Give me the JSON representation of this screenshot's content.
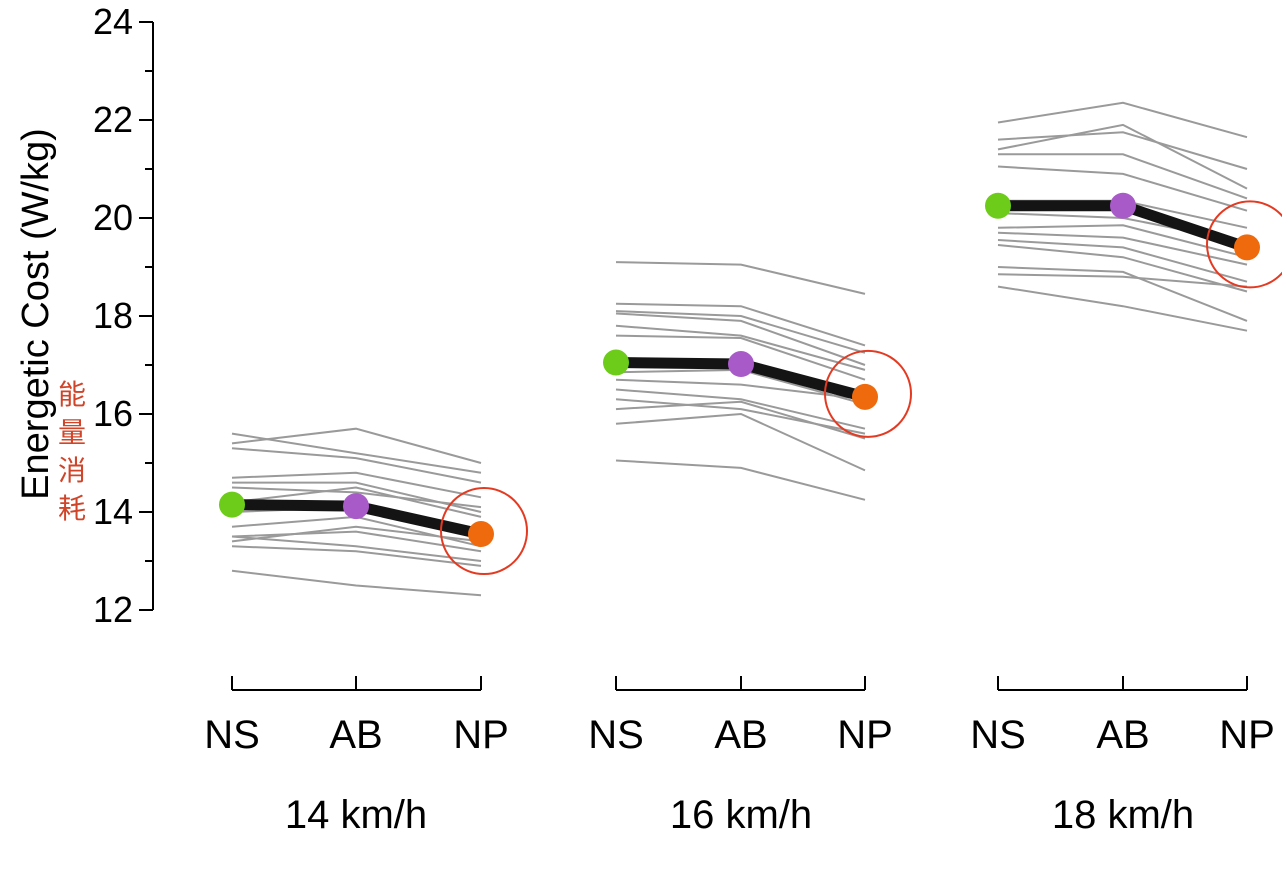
{
  "chart_data": {
    "type": "line",
    "ylabel": "Energetic Cost (W/kg)",
    "ylim": [
      12,
      24
    ],
    "yticks": [
      "12",
      "14",
      "16",
      "18",
      "20",
      "22",
      "24"
    ],
    "grid": false,
    "categories": [
      "NS",
      "AB",
      "NP"
    ],
    "groups": [
      {
        "label": "14 km/h",
        "mean": [
          14.15,
          14.12,
          13.55
        ],
        "individuals": [
          [
            15.6,
            15.2,
            14.8
          ],
          [
            15.4,
            15.7,
            15.0
          ],
          [
            15.3,
            15.1,
            14.6
          ],
          [
            14.7,
            14.8,
            14.3
          ],
          [
            14.6,
            14.6,
            14.0
          ],
          [
            14.5,
            14.4,
            14.1
          ],
          [
            14.2,
            14.5,
            13.9
          ],
          [
            14.0,
            14.1,
            13.6
          ],
          [
            13.7,
            13.9,
            13.3
          ],
          [
            13.5,
            13.6,
            13.2
          ],
          [
            13.4,
            13.7,
            13.4
          ],
          [
            13.3,
            13.2,
            12.9
          ],
          [
            13.5,
            13.3,
            13.0
          ],
          [
            12.8,
            12.5,
            12.3
          ]
        ]
      },
      {
        "label": "16 km/h",
        "mean": [
          17.05,
          17.02,
          16.35
        ],
        "individuals": [
          [
            19.1,
            19.05,
            18.45
          ],
          [
            18.25,
            18.2,
            17.4
          ],
          [
            18.1,
            18.0,
            17.25
          ],
          [
            18.05,
            17.9,
            17.0
          ],
          [
            17.8,
            17.6,
            16.9
          ],
          [
            17.6,
            17.55,
            16.7
          ],
          [
            17.0,
            17.0,
            16.4
          ],
          [
            16.85,
            16.9,
            16.2
          ],
          [
            16.7,
            16.6,
            16.3
          ],
          [
            16.5,
            16.3,
            15.7
          ],
          [
            16.3,
            16.1,
            15.6
          ],
          [
            16.1,
            16.25,
            15.5
          ],
          [
            15.8,
            16.0,
            14.85
          ],
          [
            15.05,
            14.9,
            14.25
          ]
        ]
      },
      {
        "label": "18 km/h",
        "mean": [
          20.25,
          20.25,
          19.4
        ],
        "individuals": [
          [
            21.95,
            22.35,
            21.65
          ],
          [
            21.6,
            21.75,
            21.0
          ],
          [
            21.4,
            21.9,
            20.6
          ],
          [
            21.3,
            21.3,
            20.4
          ],
          [
            21.05,
            20.9,
            20.15
          ],
          [
            20.35,
            20.35,
            19.8
          ],
          [
            20.1,
            20.0,
            19.5
          ],
          [
            19.8,
            19.85,
            19.2
          ],
          [
            19.7,
            19.6,
            19.05
          ],
          [
            19.55,
            19.4,
            18.7
          ],
          [
            19.45,
            19.2,
            18.5
          ],
          [
            18.85,
            18.8,
            18.6
          ],
          [
            18.6,
            18.2,
            17.7
          ],
          [
            19.0,
            18.9,
            17.9
          ]
        ]
      }
    ],
    "highlight": "NP",
    "colors": {
      "individual": "#9a9a9a",
      "mean_line": "#141414",
      "NS": "#6ccc19",
      "AB": "#a85ac9",
      "NP": "#ee6a0c",
      "highlight_circle": "#e43a22"
    }
  },
  "annotation": [
    "能",
    "量",
    "消",
    "耗"
  ]
}
